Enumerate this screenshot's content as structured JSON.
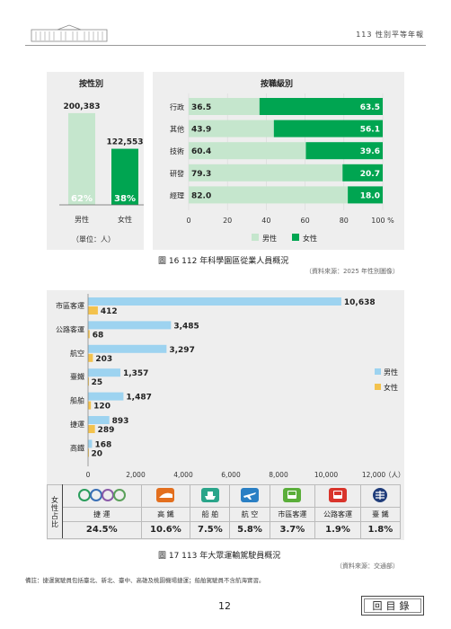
{
  "header": {
    "title": "113 性別平等年報"
  },
  "figure16": {
    "left_title": "按性別",
    "right_title": "按職級別",
    "unit": "（單位：人）",
    "caption": "圖 16  112 年科學園區從業人員概況",
    "source": "（資料來源：2025 年性別圖像）"
  },
  "figure17": {
    "caption": "圖 17  113 年大眾運輸駕駛員概況",
    "source": "（資料來源：交通部）",
    "table": {
      "row_header": "女性占比",
      "columns": [
        {
          "icon": "mrt-logos-icon",
          "label": "捷    運",
          "pct": "24.5%"
        },
        {
          "icon": "hsr-icon",
          "label": "高    鐵",
          "pct": "10.6%"
        },
        {
          "icon": "ship-icon",
          "label": "船    舶",
          "pct": "7.5%"
        },
        {
          "icon": "airplane-icon",
          "label": "航    空",
          "pct": "5.8%"
        },
        {
          "icon": "city-bus-icon",
          "label": "市區客運",
          "pct": "3.7%"
        },
        {
          "icon": "highway-bus-icon",
          "label": "公路客運",
          "pct": "1.9%"
        },
        {
          "icon": "tra-icon",
          "label": "臺    鐵",
          "pct": "1.8%"
        }
      ]
    }
  },
  "note": "備註：捷運駕駛員包括臺北、新北、臺中、高雄及桃園機場捷運；船舶駕駛員不含航海實習。",
  "page_number": "12",
  "index_button": "回目錄",
  "colors": {
    "male_light_green": "#c5e6cd",
    "female_green": "#00a551",
    "male_blue": "#9dd3f0",
    "female_yellow": "#f3c24d",
    "panel_bg": "#eeeeee"
  },
  "chart_data": [
    {
      "type": "bar",
      "title": "按性別",
      "categories": [
        "男性",
        "女性"
      ],
      "values": [
        200383,
        122553
      ],
      "percent_labels": [
        "62%",
        "38%"
      ],
      "value_labels": [
        "200,383",
        "122,553"
      ],
      "unit": "（單位：人）"
    },
    {
      "type": "bar",
      "orientation": "horizontal-stacked-percent",
      "title": "按職級別",
      "categories": [
        "行政",
        "其他",
        "技術",
        "研發",
        "經理"
      ],
      "series": [
        {
          "name": "男性",
          "values": [
            36.5,
            43.9,
            60.4,
            79.3,
            82.0
          ]
        },
        {
          "name": "女性",
          "values": [
            63.5,
            56.1,
            39.6,
            20.7,
            18.0
          ]
        }
      ],
      "value_labels": {
        "男性": [
          "36.5",
          "43.9",
          "60.4",
          "79.3",
          "82.0"
        ],
        "女性": [
          "63.5",
          "56.1",
          "39.6",
          "20.7",
          "18.0"
        ]
      },
      "xlim": [
        0,
        100
      ],
      "xticks": [
        "0",
        "20",
        "40",
        "60",
        "80",
        "100 %"
      ],
      "legend": "bottom"
    },
    {
      "type": "bar",
      "orientation": "horizontal-grouped",
      "categories": [
        "市區客運",
        "公路客運",
        "航空",
        "臺鐵",
        "船舶",
        "捷運",
        "高鐵"
      ],
      "series": [
        {
          "name": "男性",
          "values": [
            10638,
            3485,
            3297,
            1357,
            1487,
            893,
            168
          ]
        },
        {
          "name": "女性",
          "values": [
            412,
            68,
            203,
            25,
            120,
            289,
            20
          ]
        }
      ],
      "value_labels": {
        "男性": [
          "10,638",
          "3,485",
          "3,297",
          "1,357",
          "1,487",
          "893",
          "168"
        ],
        "女性": [
          "412",
          "68",
          "203",
          "25",
          "120",
          "289",
          "20"
        ]
      },
      "xlim": [
        0,
        12000
      ],
      "xticks": [
        "0",
        "2,000",
        "4,000",
        "6,000",
        "8,000",
        "10,000",
        "12,000"
      ],
      "x_unit": "（人）",
      "legend": "right"
    }
  ]
}
